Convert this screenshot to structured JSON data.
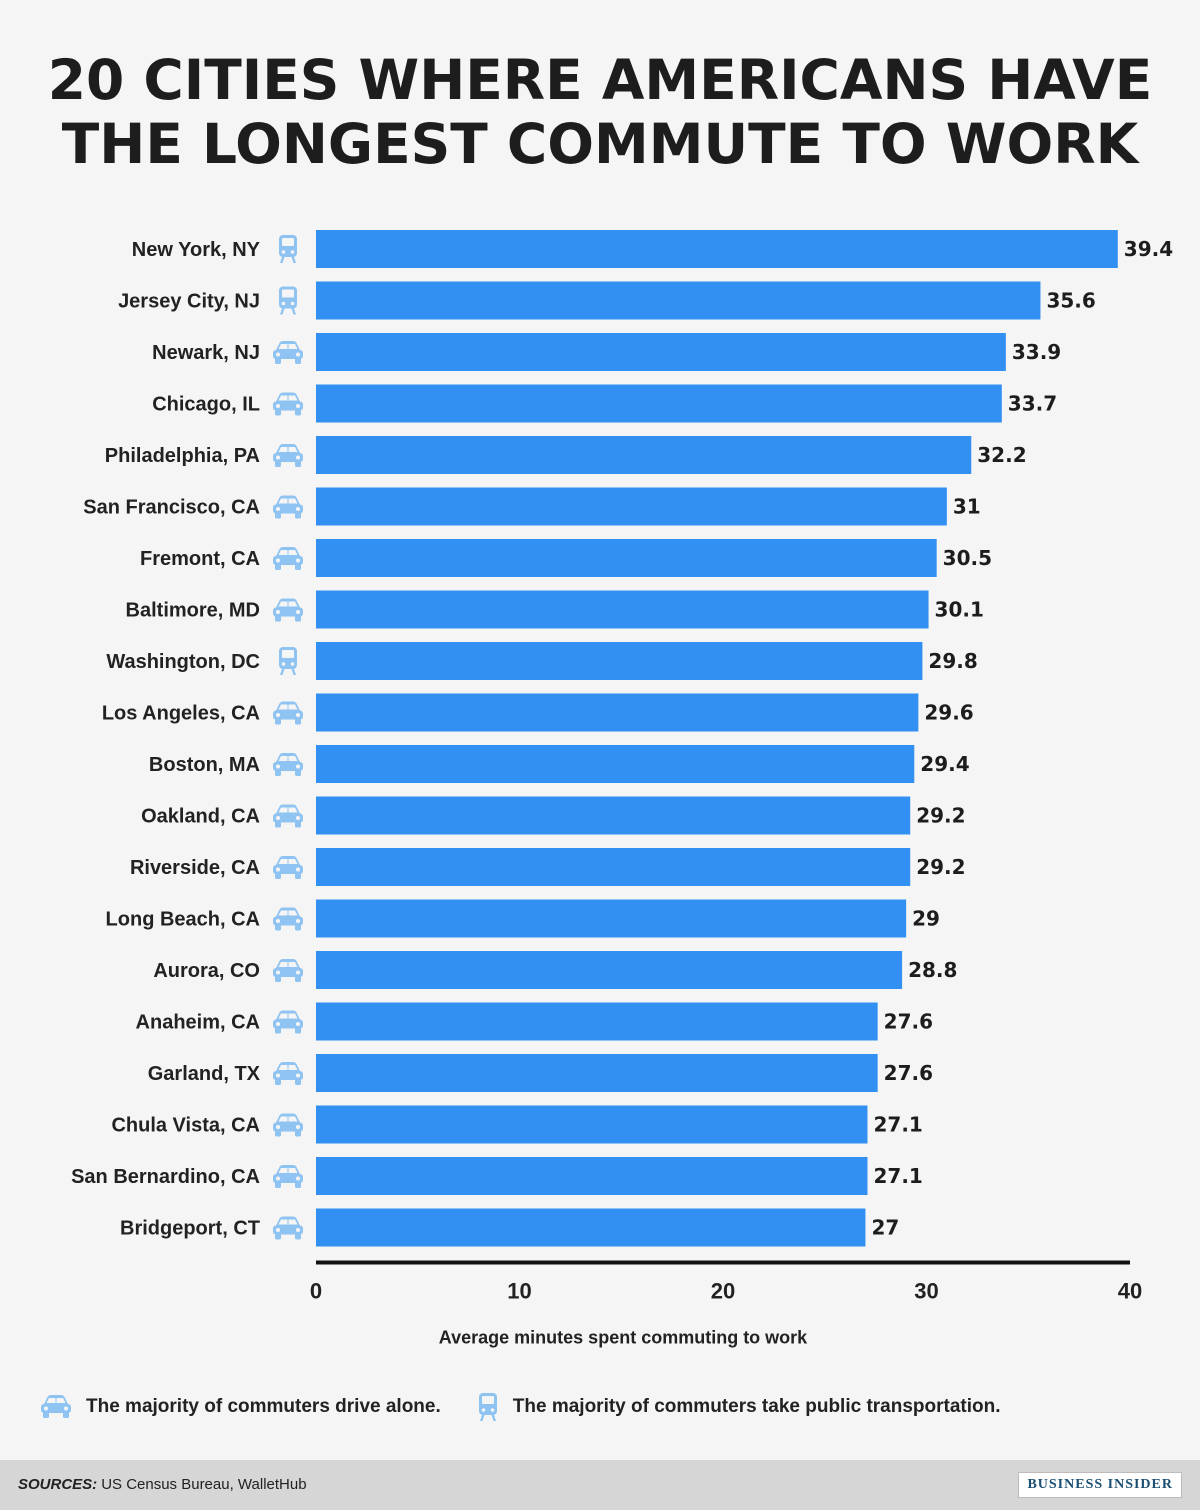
{
  "title": {
    "line1": "20 CITIES WHERE AMERICANS HAVE",
    "line2": "THE LONGEST COMMUTE TO WORK"
  },
  "chart_data": {
    "type": "bar",
    "orientation": "horizontal",
    "categories": [
      "New York, NY",
      "Jersey City, NJ",
      "Newark, NJ",
      "Chicago, IL",
      "Philadelphia, PA",
      "San Francisco, CA",
      "Fremont, CA",
      "Baltimore, MD",
      "Washington, DC",
      "Los Angeles, CA",
      "Boston, MA",
      "Oakland, CA",
      "Riverside, CA",
      "Long Beach, CA",
      "Aurora, CO",
      "Anaheim, CA",
      "Garland, TX",
      "Chula Vista, CA",
      "San Bernardino, CA",
      "Bridgeport, CT"
    ],
    "values": [
      39.4,
      35.6,
      33.9,
      33.7,
      32.2,
      31,
      30.5,
      30.1,
      29.8,
      29.6,
      29.4,
      29.2,
      29.2,
      29,
      28.8,
      27.6,
      27.6,
      27.1,
      27.1,
      27
    ],
    "value_labels": [
      "39.4",
      "35.6",
      "33.9",
      "33.7",
      "32.2",
      "31",
      "30.5",
      "30.1",
      "29.8",
      "29.6",
      "29.4",
      "29.2",
      "29.2",
      "29",
      "28.8",
      "27.6",
      "27.6",
      "27.1",
      "27.1",
      "27"
    ],
    "modes": [
      "transit",
      "transit",
      "car",
      "car",
      "car",
      "car",
      "car",
      "car",
      "transit",
      "car",
      "car",
      "car",
      "car",
      "car",
      "car",
      "car",
      "car",
      "car",
      "car",
      "car"
    ],
    "xlabel": "Average minutes spent commuting to work",
    "xlim": [
      0,
      40
    ],
    "xticks": [
      0,
      10,
      20,
      30,
      40
    ],
    "xtick_labels": [
      "0",
      "10",
      "20",
      "30",
      "40"
    ],
    "grid": false,
    "bar_color": "#3190f2",
    "icon_color": "#8fc3f2"
  },
  "legend": {
    "car_label": "The majority of commuters drive alone.",
    "transit_label": "The majority of commuters take public transportation."
  },
  "footer": {
    "sources_label": "SOURCES:",
    "sources_text": "US Census Bureau, WalletHub",
    "brand": "BUSINESS INSIDER"
  }
}
